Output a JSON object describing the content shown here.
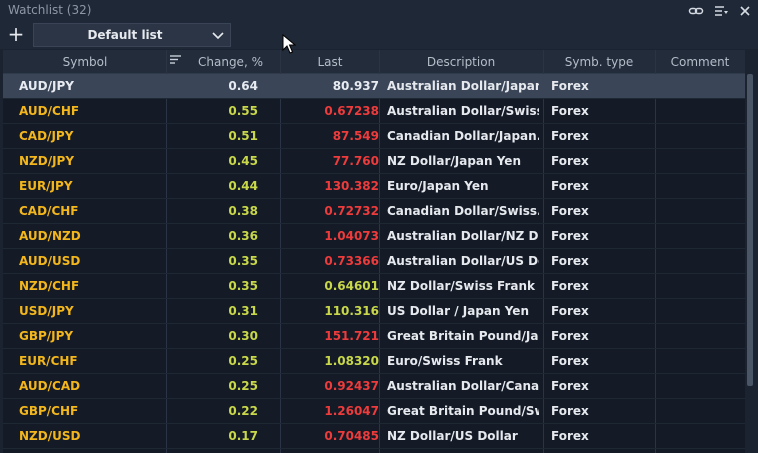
{
  "window": {
    "title": "Watchlist (32)"
  },
  "toolbar": {
    "add_symbol": "+",
    "list_selected": "Default list"
  },
  "columns": [
    "Symbol",
    "Change, %",
    "Last",
    "Description",
    "Symb. type",
    "Comment"
  ],
  "colors": {
    "up": "#c9d84a",
    "down": "#ee3b3b",
    "symbol": "#f3b61c",
    "selected_row": "#3a4558"
  },
  "rows": [
    {
      "symbol": "AUD/JPY",
      "change": "0.64",
      "last": "80.937",
      "last_dir": "neutral",
      "description": "Australian Dollar/Japan...",
      "type": "Forex",
      "comment": ""
    },
    {
      "symbol": "AUD/CHF",
      "change": "0.55",
      "last": "0.67238",
      "last_dir": "down",
      "description": "Australian Dollar/Swiss...",
      "type": "Forex",
      "comment": ""
    },
    {
      "symbol": "CAD/JPY",
      "change": "0.51",
      "last": "87.549",
      "last_dir": "down",
      "description": "Canadian Dollar/Japan...",
      "type": "Forex",
      "comment": ""
    },
    {
      "symbol": "NZD/JPY",
      "change": "0.45",
      "last": "77.760",
      "last_dir": "down",
      "description": "NZ Dollar/Japan Yen",
      "type": "Forex",
      "comment": ""
    },
    {
      "symbol": "EUR/JPY",
      "change": "0.44",
      "last": "130.382",
      "last_dir": "down",
      "description": "Euro/Japan Yen",
      "type": "Forex",
      "comment": ""
    },
    {
      "symbol": "CAD/CHF",
      "change": "0.38",
      "last": "0.72732",
      "last_dir": "down",
      "description": "Canadian Dollar/Swiss...",
      "type": "Forex",
      "comment": ""
    },
    {
      "symbol": "AUD/NZD",
      "change": "0.36",
      "last": "1.04073",
      "last_dir": "down",
      "description": "Australian Dollar/NZ Do...",
      "type": "Forex",
      "comment": ""
    },
    {
      "symbol": "AUD/USD",
      "change": "0.35",
      "last": "0.73366",
      "last_dir": "down",
      "description": "Australian Dollar/US Do...",
      "type": "Forex",
      "comment": ""
    },
    {
      "symbol": "NZD/CHF",
      "change": "0.35",
      "last": "0.64601",
      "last_dir": "up",
      "description": "NZ Dollar/Swiss Frank",
      "type": "Forex",
      "comment": ""
    },
    {
      "symbol": "USD/JPY",
      "change": "0.31",
      "last": "110.316",
      "last_dir": "up",
      "description": "US Dollar / Japan Yen",
      "type": "Forex",
      "comment": ""
    },
    {
      "symbol": "GBP/JPY",
      "change": "0.30",
      "last": "151.721",
      "last_dir": "down",
      "description": "Great Britain Pound/Ja...",
      "type": "Forex",
      "comment": ""
    },
    {
      "symbol": "EUR/CHF",
      "change": "0.25",
      "last": "1.08320",
      "last_dir": "up",
      "description": "Euro/Swiss Frank",
      "type": "Forex",
      "comment": ""
    },
    {
      "symbol": "AUD/CAD",
      "change": "0.25",
      "last": "0.92437",
      "last_dir": "down",
      "description": "Australian Dollar/Canad...",
      "type": "Forex",
      "comment": ""
    },
    {
      "symbol": "GBP/CHF",
      "change": "0.22",
      "last": "1.26047",
      "last_dir": "down",
      "description": "Great Britain Pound/Sw...",
      "type": "Forex",
      "comment": ""
    },
    {
      "symbol": "NZD/USD",
      "change": "0.17",
      "last": "0.70485",
      "last_dir": "down",
      "description": "NZ Dollar/US Dollar",
      "type": "Forex",
      "comment": ""
    }
  ]
}
